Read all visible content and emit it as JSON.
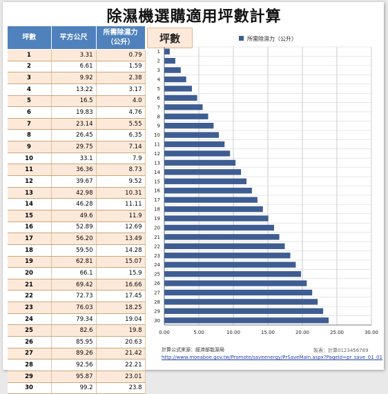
{
  "title": "除濕機選購適用坪數計算",
  "table": {
    "headers": [
      "坪數",
      "平方公尺",
      "所需除濕力\n（公升）"
    ],
    "rows": [
      [
        "1",
        "3.31",
        "0.79"
      ],
      [
        "2",
        "6.61",
        "1.59"
      ],
      [
        "3",
        "9.92",
        "2.38"
      ],
      [
        "4",
        "13.22",
        "3.17"
      ],
      [
        "5",
        "16.5",
        "4.0"
      ],
      [
        "6",
        "19.83",
        "4.76"
      ],
      [
        "7",
        "23.14",
        "5.55"
      ],
      [
        "8",
        "26.45",
        "6.35"
      ],
      [
        "9",
        "29.75",
        "7.14"
      ],
      [
        "10",
        "33.1",
        "7.9"
      ],
      [
        "11",
        "36.36",
        "8.73"
      ],
      [
        "12",
        "39.67",
        "9.52"
      ],
      [
        "13",
        "42.98",
        "10.31"
      ],
      [
        "14",
        "46.28",
        "11.11"
      ],
      [
        "15",
        "49.6",
        "11.9"
      ],
      [
        "16",
        "52.89",
        "12.69"
      ],
      [
        "17",
        "56.20",
        "13.49"
      ],
      [
        "18",
        "59.50",
        "14.28"
      ],
      [
        "19",
        "62.81",
        "15.07"
      ],
      [
        "20",
        "66.1",
        "15.9"
      ],
      [
        "21",
        "69.42",
        "16.66"
      ],
      [
        "22",
        "72.73",
        "17.45"
      ],
      [
        "23",
        "76.03",
        "18.25"
      ],
      [
        "24",
        "79.34",
        "19.04"
      ],
      [
        "25",
        "82.6",
        "19.8"
      ],
      [
        "26",
        "85.95",
        "20.63"
      ],
      [
        "27",
        "89.26",
        "21.42"
      ],
      [
        "28",
        "92.56",
        "22.21"
      ],
      [
        "29",
        "95.87",
        "23.01"
      ],
      [
        "30",
        "99.2",
        "23.8"
      ]
    ]
  },
  "chart_data": {
    "type": "bar",
    "orientation": "horizontal",
    "ylabel": "坪數",
    "categories": [
      "1",
      "2",
      "3",
      "4",
      "5",
      "6",
      "7",
      "8",
      "9",
      "10",
      "11",
      "12",
      "13",
      "14",
      "15",
      "16",
      "17",
      "18",
      "19",
      "20",
      "21",
      "22",
      "23",
      "24",
      "25",
      "26",
      "27",
      "28",
      "29",
      "30"
    ],
    "series": [
      {
        "name": "所需除濕力（公升）",
        "color": "#3e5d92",
        "values": [
          0.79,
          1.59,
          2.38,
          3.17,
          4.0,
          4.76,
          5.55,
          6.35,
          7.14,
          7.9,
          8.73,
          9.52,
          10.31,
          11.11,
          11.9,
          12.69,
          13.49,
          14.28,
          15.07,
          15.9,
          16.66,
          17.45,
          18.25,
          19.04,
          19.8,
          20.63,
          21.42,
          22.21,
          23.01,
          23.8
        ]
      }
    ],
    "xlim": [
      0,
      30
    ],
    "xticks": [
      "0.00",
      "5.00",
      "10.00",
      "15.00",
      "20.00",
      "25.00",
      "30.00"
    ],
    "grid": true,
    "legend": "top"
  },
  "source": {
    "label": "計算公式來源：經濟部能源局",
    "url": "http://www.moeaboe.gov.tw/Promote/saveenergy/PrSaveMain.aspx?PageId=pr_save_01_01",
    "producer": "製表：計算0123456789"
  }
}
